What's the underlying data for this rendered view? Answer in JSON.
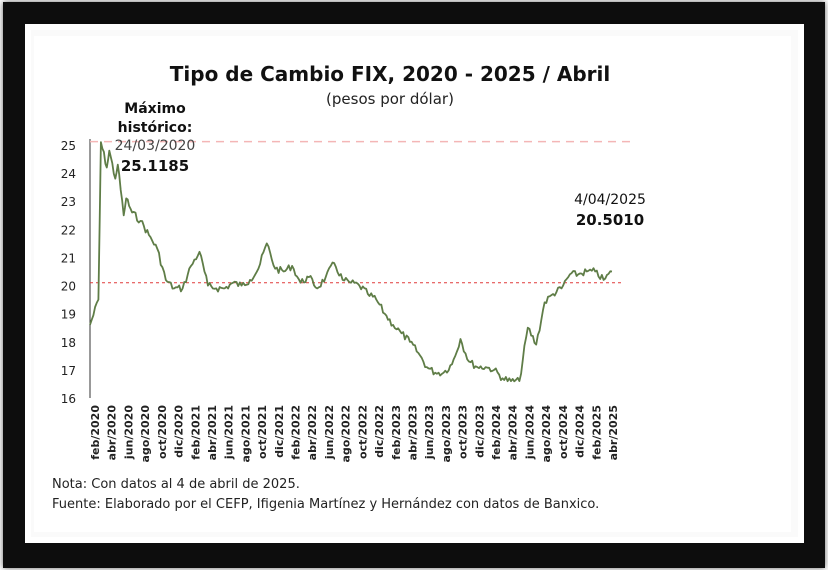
{
  "title": "Tipo de Cambio FIX, 2020 - 2025 / Abril",
  "subtitle": "(pesos por dólar)",
  "max_annotation": {
    "label_line1": "Máximo",
    "label_line2": "histórico:",
    "date": "24/03/2020",
    "value": "25.1185"
  },
  "last_annotation": {
    "date": "4/04/2025",
    "value": "20.5010"
  },
  "note": "Nota: Con datos al 4 de abril de 2025.",
  "source": "Fuente: Elaborado por el CEFP, Ifigenia Martínez y Hernández con datos de Banxico.",
  "colors": {
    "series": "#5f7d47",
    "max_line": "#f4b6b6",
    "ref_line": "#e03a3a",
    "frame": "#0d0d0d"
  },
  "chart_data": {
    "type": "line",
    "title": "Tipo de Cambio FIX, 2020 - 2025 / Abril",
    "subtitle": "(pesos por dólar)",
    "xlabel": "",
    "ylabel": "",
    "ylim": [
      16,
      25
    ],
    "yticks": [
      16,
      17,
      18,
      19,
      20,
      21,
      22,
      23,
      24,
      25
    ],
    "xticks": [
      "feb/2020",
      "abr/2020",
      "jun/2020",
      "ago/2020",
      "oct/2020",
      "dic/2020",
      "feb/2021",
      "abr/2021",
      "jun/2021",
      "ago/2021",
      "oct/2021",
      "dic/2021",
      "feb/2022",
      "abr/2022",
      "jun/2022",
      "ago/2022",
      "oct/2022",
      "dic/2022",
      "feb/2023",
      "abr/2023",
      "jun/2023",
      "ago/2023",
      "oct/2023",
      "dic/2023",
      "feb/2024",
      "abr/2024",
      "jun/2024",
      "ago/2024",
      "oct/2024",
      "dic/2024",
      "feb/2025",
      "abr/2025"
    ],
    "reference_lines": [
      {
        "y": 25.1185,
        "style": "dashed"
      },
      {
        "y": 20.1,
        "style": "dotted"
      }
    ],
    "grid": false,
    "legend": "none",
    "series": [
      {
        "x": [
          "2020-02",
          "2020-03",
          "2020-03",
          "2020-04",
          "2020-04",
          "2020-05",
          "2020-05",
          "2020-06",
          "2020-06",
          "2020-07",
          "2020-08",
          "2020-09",
          "2020-10",
          "2020-11",
          "2020-12",
          "2021-01",
          "2021-02",
          "2021-03",
          "2021-04",
          "2021-05",
          "2021-06",
          "2021-07",
          "2021-08",
          "2021-09",
          "2021-10",
          "2021-11",
          "2021-12",
          "2022-01",
          "2022-02",
          "2022-03",
          "2022-04",
          "2022-05",
          "2022-06",
          "2022-07",
          "2022-08",
          "2022-09",
          "2022-10",
          "2022-11",
          "2022-12",
          "2023-01",
          "2023-02",
          "2023-03",
          "2023-04",
          "2023-05",
          "2023-06",
          "2023-07",
          "2023-08",
          "2023-09",
          "2023-10",
          "2023-11",
          "2023-12",
          "2024-01",
          "2024-02",
          "2024-03",
          "2024-04",
          "2024-05",
          "2024-06",
          "2024-07",
          "2024-08",
          "2024-09",
          "2024-10",
          "2024-11",
          "2024-12",
          "2025-01",
          "2025-02",
          "2025-03",
          "2025-04"
        ],
        "values": [
          18.6,
          19.5,
          25.1,
          24.2,
          24.8,
          23.8,
          24.3,
          22.5,
          23.1,
          22.6,
          22.3,
          21.8,
          21.3,
          20.2,
          19.9,
          19.9,
          20.7,
          21.2,
          20.0,
          19.9,
          19.9,
          20.1,
          20.0,
          20.2,
          20.6,
          21.5,
          20.6,
          20.5,
          20.7,
          20.1,
          20.3,
          19.9,
          20.3,
          20.8,
          20.2,
          20.1,
          20.0,
          19.7,
          19.5,
          19.0,
          18.6,
          18.3,
          18.0,
          17.6,
          17.1,
          16.9,
          16.9,
          17.2,
          18.1,
          17.3,
          17.1,
          17.1,
          17.0,
          16.7,
          16.6,
          16.6,
          18.5,
          17.9,
          19.4,
          19.7,
          19.9,
          20.4,
          20.4,
          20.5,
          20.5,
          20.2,
          20.5
        ]
      }
    ]
  }
}
